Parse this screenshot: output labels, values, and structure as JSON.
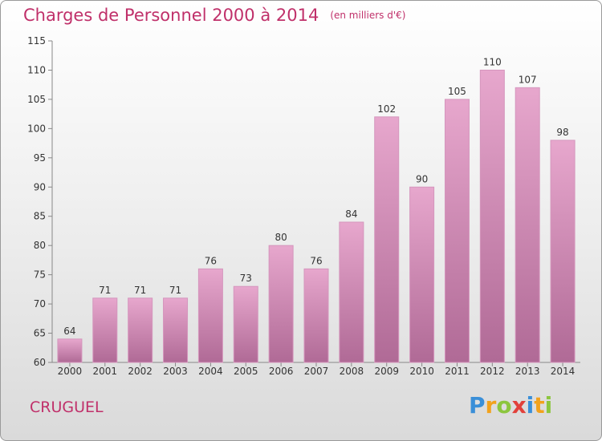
{
  "title": "Charges de Personnel 2000 à 2014",
  "subtitle": "(en milliers d'€)",
  "commune": "CRUGUEL",
  "logo": {
    "letters": [
      "P",
      "r",
      "o",
      "x",
      "i",
      "t",
      "i"
    ],
    "colors": [
      "#3a8fd8",
      "#f2a21c",
      "#8cc63e",
      "#e2413b",
      "#3a8fd8",
      "#f2a21c",
      "#8cc63e"
    ]
  },
  "colors": {
    "bar_top": "#e7a7cd",
    "bar_bottom": "#b06a96",
    "bar_stroke": "#d596bd",
    "accent": "#c0306a"
  },
  "chart_data": {
    "type": "bar",
    "title": "Charges de Personnel 2000 à 2014",
    "subtitle": "(en milliers d'€)",
    "categories": [
      "2000",
      "2001",
      "2002",
      "2003",
      "2004",
      "2005",
      "2006",
      "2007",
      "2008",
      "2009",
      "2010",
      "2011",
      "2012",
      "2013",
      "2014"
    ],
    "values": [
      64,
      71,
      71,
      71,
      76,
      73,
      80,
      76,
      84,
      102,
      90,
      105,
      110,
      107,
      98
    ],
    "ylim": [
      60,
      115
    ],
    "yticks": [
      60,
      65,
      70,
      75,
      80,
      85,
      90,
      95,
      100,
      105,
      110,
      115
    ],
    "grid": false,
    "legend": "none"
  }
}
